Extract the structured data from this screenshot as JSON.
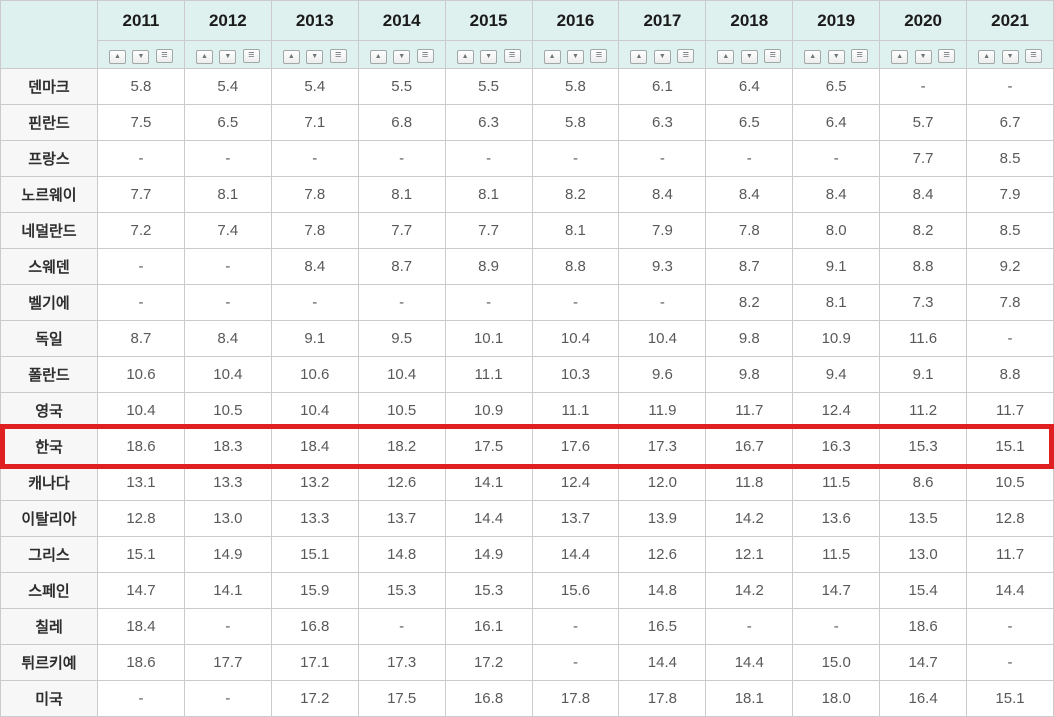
{
  "table": {
    "corner_label": "",
    "years": [
      "2011",
      "2012",
      "2013",
      "2014",
      "2015",
      "2016",
      "2017",
      "2018",
      "2019",
      "2020",
      "2021"
    ],
    "sort_controls": {
      "asc_glyph": "▲",
      "desc_glyph": "▼",
      "menu_glyph": "≡"
    },
    "rows": [
      {
        "country": "덴마크",
        "highlighted": false,
        "values": [
          "5.8",
          "5.4",
          "5.4",
          "5.5",
          "5.5",
          "5.8",
          "6.1",
          "6.4",
          "6.5",
          "-",
          "-"
        ]
      },
      {
        "country": "핀란드",
        "highlighted": false,
        "values": [
          "7.5",
          "6.5",
          "7.1",
          "6.8",
          "6.3",
          "5.8",
          "6.3",
          "6.5",
          "6.4",
          "5.7",
          "6.7"
        ]
      },
      {
        "country": "프랑스",
        "highlighted": false,
        "values": [
          "-",
          "-",
          "-",
          "-",
          "-",
          "-",
          "-",
          "-",
          "-",
          "7.7",
          "8.5"
        ]
      },
      {
        "country": "노르웨이",
        "highlighted": false,
        "values": [
          "7.7",
          "8.1",
          "7.8",
          "8.1",
          "8.1",
          "8.2",
          "8.4",
          "8.4",
          "8.4",
          "8.4",
          "7.9"
        ]
      },
      {
        "country": "네덜란드",
        "highlighted": false,
        "values": [
          "7.2",
          "7.4",
          "7.8",
          "7.7",
          "7.7",
          "8.1",
          "7.9",
          "7.8",
          "8.0",
          "8.2",
          "8.5"
        ]
      },
      {
        "country": "스웨덴",
        "highlighted": false,
        "values": [
          "-",
          "-",
          "8.4",
          "8.7",
          "8.9",
          "8.8",
          "9.3",
          "8.7",
          "9.1",
          "8.8",
          "9.2"
        ]
      },
      {
        "country": "벨기에",
        "highlighted": false,
        "values": [
          "-",
          "-",
          "-",
          "-",
          "-",
          "-",
          "-",
          "8.2",
          "8.1",
          "7.3",
          "7.8"
        ]
      },
      {
        "country": "독일",
        "highlighted": false,
        "values": [
          "8.7",
          "8.4",
          "9.1",
          "9.5",
          "10.1",
          "10.4",
          "10.4",
          "9.8",
          "10.9",
          "11.6",
          "-"
        ]
      },
      {
        "country": "폴란드",
        "highlighted": false,
        "values": [
          "10.6",
          "10.4",
          "10.6",
          "10.4",
          "11.1",
          "10.3",
          "9.6",
          "9.8",
          "9.4",
          "9.1",
          "8.8"
        ]
      },
      {
        "country": "영국",
        "highlighted": false,
        "values": [
          "10.4",
          "10.5",
          "10.4",
          "10.5",
          "10.9",
          "11.1",
          "11.9",
          "11.7",
          "12.4",
          "11.2",
          "11.7"
        ]
      },
      {
        "country": "한국",
        "highlighted": true,
        "values": [
          "18.6",
          "18.3",
          "18.4",
          "18.2",
          "17.5",
          "17.6",
          "17.3",
          "16.7",
          "16.3",
          "15.3",
          "15.1"
        ]
      },
      {
        "country": "캐나다",
        "highlighted": false,
        "values": [
          "13.1",
          "13.3",
          "13.2",
          "12.6",
          "14.1",
          "12.4",
          "12.0",
          "11.8",
          "11.5",
          "8.6",
          "10.5"
        ]
      },
      {
        "country": "이탈리아",
        "highlighted": false,
        "values": [
          "12.8",
          "13.0",
          "13.3",
          "13.7",
          "14.4",
          "13.7",
          "13.9",
          "14.2",
          "13.6",
          "13.5",
          "12.8"
        ]
      },
      {
        "country": "그리스",
        "highlighted": false,
        "values": [
          "15.1",
          "14.9",
          "15.1",
          "14.8",
          "14.9",
          "14.4",
          "12.6",
          "12.1",
          "11.5",
          "13.0",
          "11.7"
        ]
      },
      {
        "country": "스페인",
        "highlighted": false,
        "values": [
          "14.7",
          "14.1",
          "15.9",
          "15.3",
          "15.3",
          "15.6",
          "14.8",
          "14.2",
          "14.7",
          "15.4",
          "14.4"
        ]
      },
      {
        "country": "칠레",
        "highlighted": false,
        "values": [
          "18.4",
          "-",
          "16.8",
          "-",
          "16.1",
          "-",
          "16.5",
          "-",
          "-",
          "18.6",
          "-"
        ]
      },
      {
        "country": "튀르키예",
        "highlighted": false,
        "values": [
          "18.6",
          "17.7",
          "17.1",
          "17.3",
          "17.2",
          "-",
          "14.4",
          "14.4",
          "15.0",
          "14.7",
          "-"
        ]
      },
      {
        "country": "미국",
        "highlighted": false,
        "values": [
          "-",
          "-",
          "17.2",
          "17.5",
          "16.8",
          "17.8",
          "17.8",
          "18.1",
          "18.0",
          "16.4",
          "15.1"
        ]
      }
    ]
  },
  "colors": {
    "header_bg": "#def1ee",
    "country_column_bg": "#f7f7f7",
    "grid_border": "#cbcbcb",
    "highlight_red": "#e02020",
    "value_text": "#595959",
    "header_text": "#1b1b1b"
  }
}
